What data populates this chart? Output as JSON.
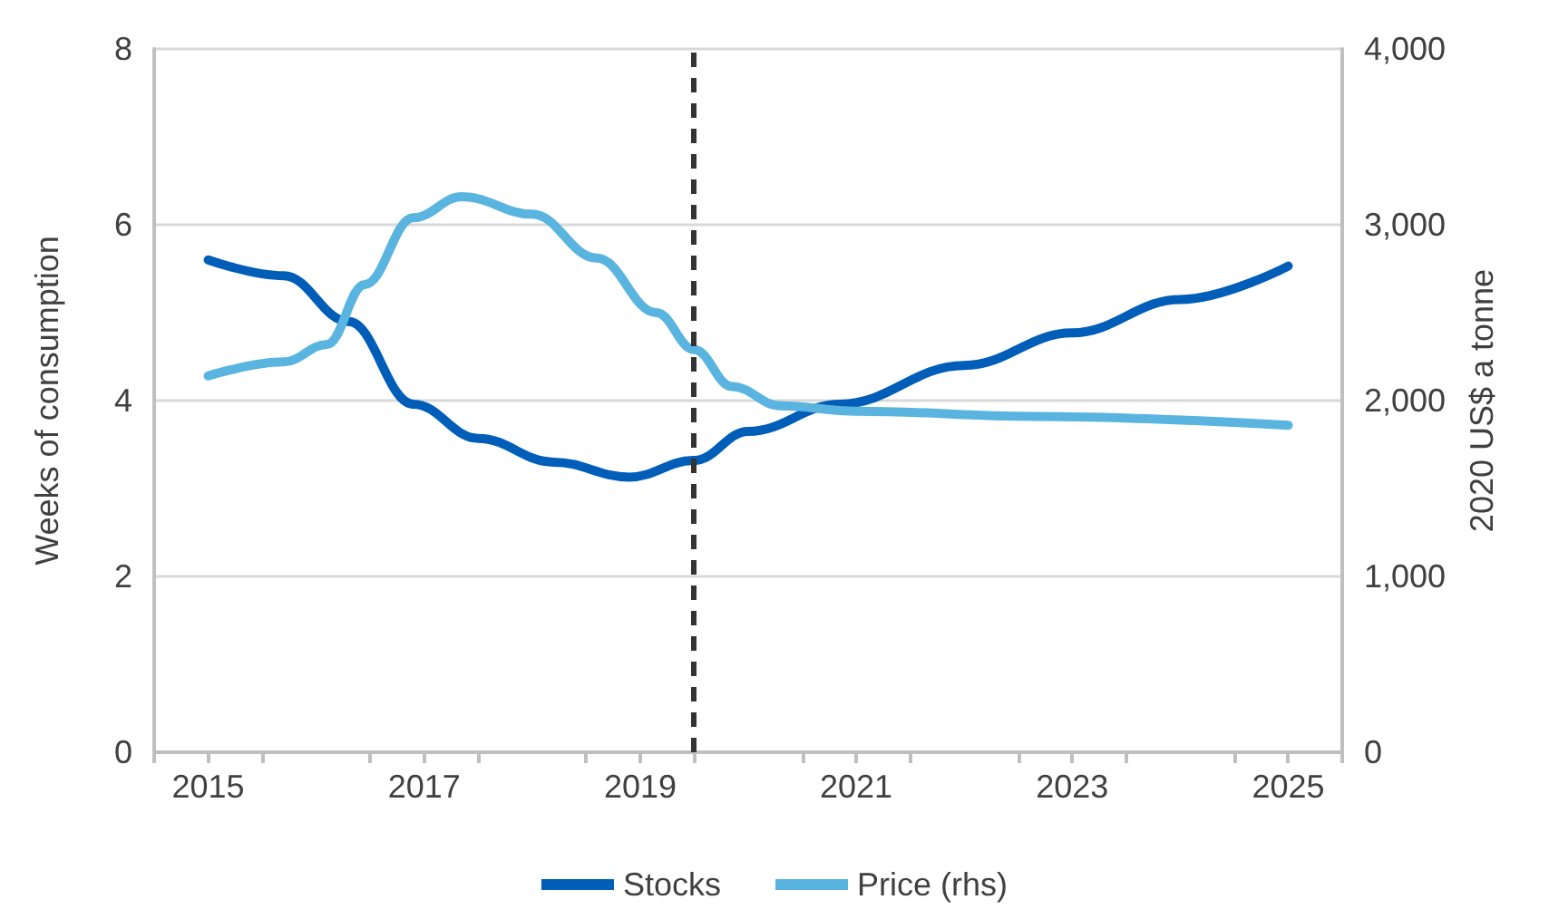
{
  "chart_data": {
    "type": "line",
    "xlabel": null,
    "ylabel": "Weeks of consumption",
    "y2label": "2020 US$ a tonne",
    "xlim": [
      2014.5,
      2025.5
    ],
    "xticks": [
      {
        "value": 2014.5,
        "label": null
      },
      {
        "value": 2015,
        "label": "2015"
      },
      {
        "value": 2015.5,
        "label": null
      },
      {
        "value": 2016.5,
        "label": null
      },
      {
        "value": 2017,
        "label": "2017"
      },
      {
        "value": 2017.5,
        "label": null
      },
      {
        "value": 2018.5,
        "label": null
      },
      {
        "value": 2019,
        "label": "2019"
      },
      {
        "value": 2019.5,
        "label": null
      },
      {
        "value": 2020.5,
        "label": null
      },
      {
        "value": 2021,
        "label": "2021"
      },
      {
        "value": 2021.5,
        "label": null
      },
      {
        "value": 2022.5,
        "label": null
      },
      {
        "value": 2023,
        "label": "2023"
      },
      {
        "value": 2023.5,
        "label": null
      },
      {
        "value": 2024.5,
        "label": null
      },
      {
        "value": 2025,
        "label": "2025"
      },
      {
        "value": 2025.5,
        "label": null
      }
    ],
    "ylim": [
      0,
      8
    ],
    "yticks": [
      0,
      2,
      4,
      6,
      8
    ],
    "y2lim": [
      0,
      4000
    ],
    "y2ticks": [
      0,
      {
        "value": 1000,
        "label": "1,000"
      },
      {
        "value": 2000,
        "label": "2,000"
      },
      {
        "value": 3000,
        "label": "3,000"
      },
      {
        "value": 4000,
        "label": "4,000"
      }
    ],
    "grid": "y",
    "legend": "bottom",
    "marker": "none",
    "line_style": "solid",
    "ref_lines": [
      {
        "axis": "x",
        "value": 2019.5,
        "label": null,
        "color": "#333333",
        "line_style": "dashed"
      }
    ],
    "series": [
      {
        "name": "Stocks",
        "color": "#005eb8",
        "x": [
          2015,
          2015.7,
          2016.3,
          2016.9,
          2017.5,
          2018.2,
          2018.9,
          2019.5,
          2020,
          2020.85,
          2022,
          2023,
          2024,
          2025
        ],
        "values": [
          5.6,
          5.42,
          4.9,
          3.96,
          3.57,
          3.3,
          3.13,
          3.32,
          3.65,
          3.96,
          4.4,
          4.77,
          5.15,
          5.53
        ]
      },
      {
        "name": "Price (rhs)",
        "axis": "y2",
        "color": "#5ab4e0",
        "x": [
          2015,
          2015.7,
          2016.1,
          2016.45,
          2016.9,
          2017.35,
          2018,
          2018.6,
          2019.15,
          2019.5,
          2019.85,
          2020.3,
          2021,
          2022.65,
          2025
        ],
        "values": [
          2140,
          2220,
          2320,
          2660,
          3040,
          3160,
          3060,
          2810,
          2500,
          2290,
          2080,
          1970,
          1940,
          1910,
          1860
        ]
      }
    ]
  }
}
